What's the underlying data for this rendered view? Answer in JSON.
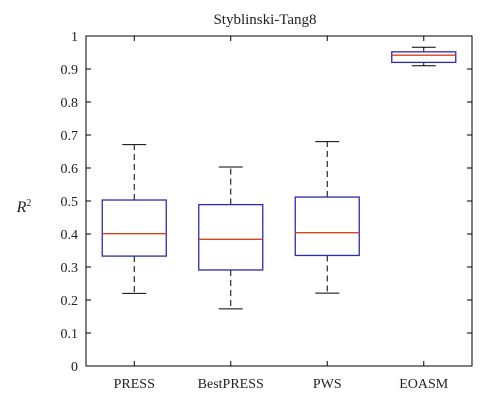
{
  "chart_data": {
    "type": "boxplot",
    "title": "Styblinski-Tang8",
    "ylabel": {
      "base": "R",
      "sup": "2"
    },
    "xlabel": "",
    "ylim": [
      0,
      1
    ],
    "yticks": [
      "0",
      "0.1",
      "0.2",
      "0.3",
      "0.4",
      "0.5",
      "0.6",
      "0.7",
      "0.8",
      "0.9",
      "1"
    ],
    "categories": [
      "PRESS",
      "BestPRESS",
      "PWS",
      "EOASM"
    ],
    "boxes": [
      {
        "name": "PRESS",
        "whisker_low": 0.22,
        "q1": 0.333,
        "median": 0.401,
        "q3": 0.503,
        "whisker_high": 0.671
      },
      {
        "name": "BestPRESS",
        "whisker_low": 0.173,
        "q1": 0.291,
        "median": 0.384,
        "q3": 0.489,
        "whisker_high": 0.603
      },
      {
        "name": "PWS",
        "whisker_low": 0.221,
        "q1": 0.335,
        "median": 0.404,
        "q3": 0.512,
        "whisker_high": 0.68
      },
      {
        "name": "EOASM",
        "whisker_low": 0.91,
        "q1": 0.92,
        "median": 0.942,
        "q3": 0.952,
        "whisker_high": 0.966
      }
    ],
    "grid": false,
    "colors": {
      "box": "#2b2bb0",
      "median": "#e0401a",
      "whisker": "#000000"
    }
  }
}
